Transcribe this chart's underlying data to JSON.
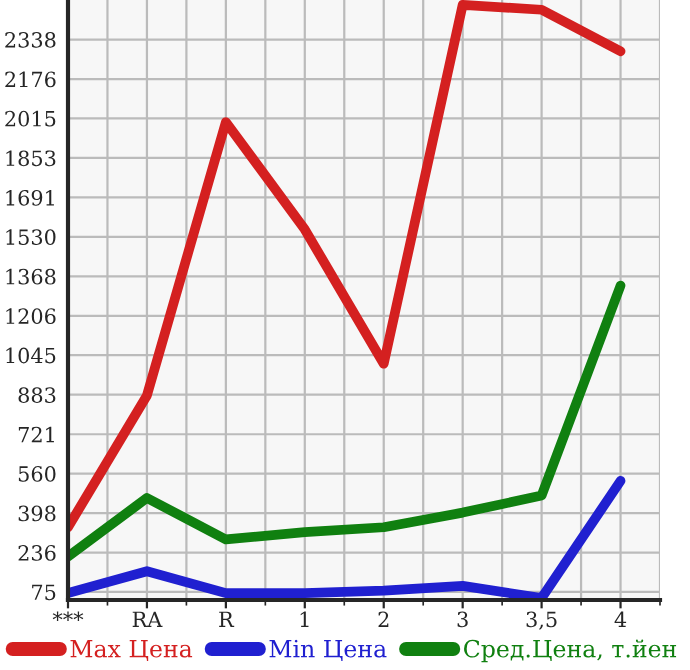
{
  "chart_data": {
    "type": "line",
    "categories": [
      "***",
      "RA",
      "R",
      "1",
      "2",
      "3",
      "3,5",
      "4"
    ],
    "series": [
      {
        "name": "Max Цена",
        "color": "#d42020",
        "values": [
          340,
          880,
          2000,
          1560,
          1010,
          2480,
          2460,
          2290
        ]
      },
      {
        "name": "Min Цена",
        "color": "#2020d0",
        "values": [
          70,
          160,
          70,
          70,
          80,
          100,
          50,
          530
        ]
      },
      {
        "name": "Сред.Цена, т.йен",
        "color": "#108010",
        "values": [
          220,
          460,
          290,
          320,
          340,
          400,
          470,
          1330
        ]
      }
    ],
    "ylim": [
      42,
      2500
    ],
    "yticks": [
      75,
      236,
      398,
      560,
      721,
      883,
      1045,
      1206,
      1368,
      1530,
      1691,
      1853,
      2015,
      2176,
      2338
    ],
    "grid": true,
    "legend": "bottom",
    "marker": "none",
    "line_style": "solid"
  }
}
